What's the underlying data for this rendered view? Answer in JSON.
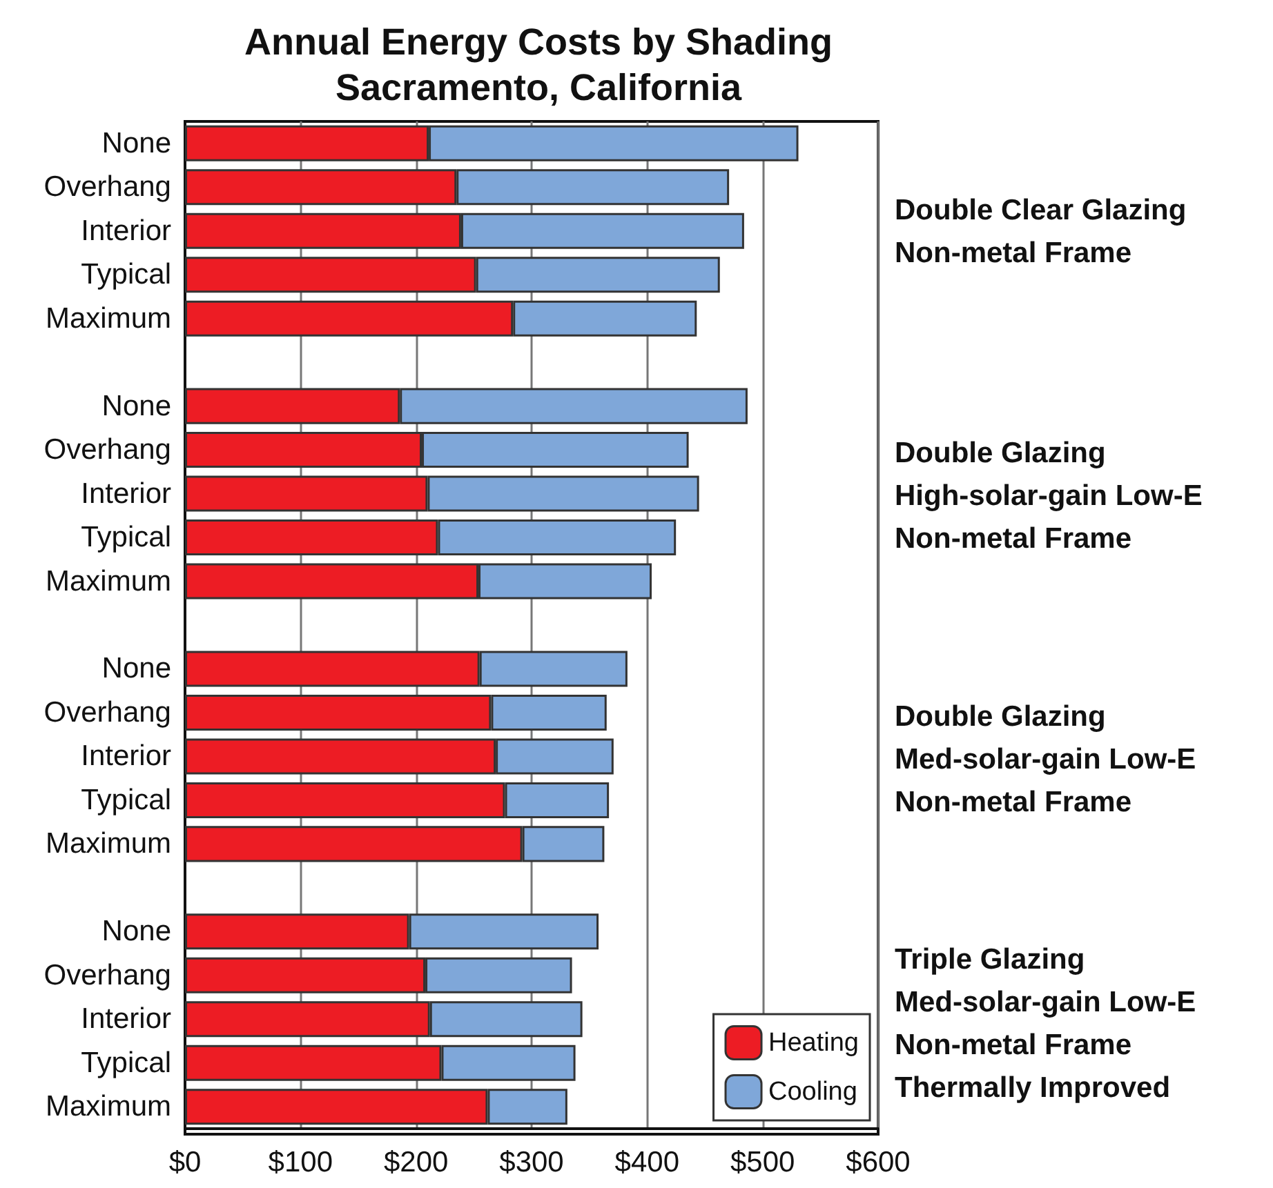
{
  "chart_data": {
    "type": "bar",
    "orientation": "horizontal",
    "stacked": true,
    "title": "Annual Energy Costs by Shading",
    "subtitle": "Sacramento, California",
    "categories": [
      "None",
      "Overhang",
      "Interior",
      "Typical",
      "Maximum",
      null,
      "None",
      "Overhang",
      "Interior",
      "Typical",
      "Maximum",
      null,
      "None",
      "Overhang",
      "Interior",
      "Typical",
      "Maximum",
      null,
      "None",
      "Overhang",
      "Interior",
      "Typical",
      "Maximum"
    ],
    "series": [
      {
        "name": "Heating",
        "color": "#ed1c24",
        "values": [
          211,
          235,
          239,
          252,
          284,
          null,
          186,
          205,
          210,
          219,
          254,
          null,
          255,
          265,
          269,
          277,
          292,
          null,
          194,
          208,
          212,
          222,
          262
        ]
      },
      {
        "name": "Cooling",
        "color": "#7fa7d9",
        "values": [
          320,
          236,
          245,
          211,
          159,
          null,
          301,
          231,
          235,
          206,
          150,
          null,
          128,
          100,
          102,
          90,
          71,
          null,
          164,
          127,
          132,
          116,
          69
        ]
      }
    ],
    "xlim": [
      0,
      600
    ],
    "xticks": [
      {
        "value": 0,
        "label": "$0"
      },
      {
        "value": 100,
        "label": "$100"
      },
      {
        "value": 200,
        "label": "$200"
      },
      {
        "value": 300,
        "label": "$300"
      },
      {
        "value": 400,
        "label": "$400"
      },
      {
        "value": 500,
        "label": "$500"
      },
      {
        "value": 600,
        "label": "$600"
      }
    ],
    "grid": "x",
    "legend": "bottom right",
    "annotations": [
      "Double Clear Glazing\nNon-metal Frame",
      "Double Glazing\nHigh-solar-gain Low-E\nNon-metal Frame",
      "Double Glazing\nMed-solar-gain Low-E\nNon-metal Frame",
      "Triple Glazing\nMed-solar-gain Low-E\nNon-metal Frame\nThermally Improved"
    ]
  }
}
